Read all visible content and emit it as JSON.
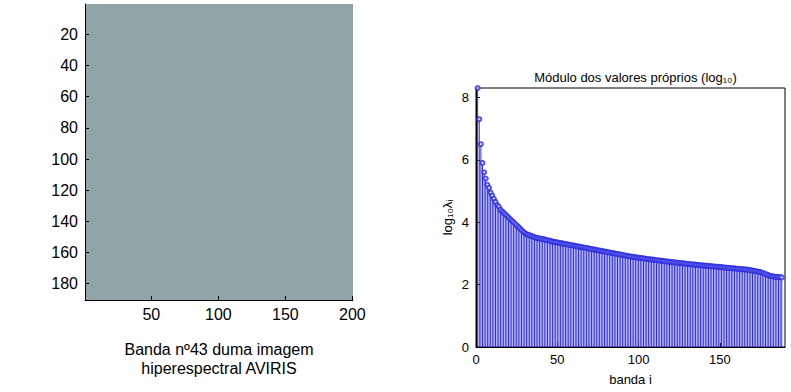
{
  "chart_data": [
    {
      "type": "image",
      "xlabel": "Banda nº43 duma imagem hiperespectral AVIRIS",
      "color": "#8fa5a6",
      "xlim": [
        0.5,
        200.5
      ],
      "xticks": [
        50,
        100,
        150,
        200
      ],
      "ylim": [
        0.5,
        190.5
      ],
      "yticks": [
        20,
        40,
        60,
        80,
        100,
        120,
        140,
        160,
        180
      ],
      "grid": false
    },
    {
      "type": "bar",
      "title": "Módulo dos valores próprios (log₁₀)",
      "xlabel": "banda i",
      "ylabel": "log₁₀λᵢ",
      "color": "#2b2be0",
      "marker": "circle",
      "grid": false,
      "xlim": [
        0,
        190
      ],
      "xticks": [
        0,
        50,
        100,
        150
      ],
      "ylim": [
        0,
        8.3
      ],
      "yticks": [
        0,
        2,
        4,
        6,
        8
      ],
      "x": [
        1,
        2,
        3,
        4,
        5,
        6,
        7,
        8,
        9,
        10,
        11,
        12,
        13,
        14,
        15,
        16,
        17,
        18,
        19,
        20,
        21,
        22,
        23,
        24,
        25,
        26,
        27,
        28,
        29,
        30,
        31,
        32,
        33,
        34,
        35,
        36,
        37,
        38,
        39,
        40,
        41,
        42,
        43,
        44,
        45,
        46,
        47,
        48,
        49,
        50,
        51,
        52,
        53,
        54,
        55,
        56,
        57,
        58,
        59,
        60,
        61,
        62,
        63,
        64,
        65,
        66,
        67,
        68,
        69,
        70,
        71,
        72,
        73,
        74,
        75,
        76,
        77,
        78,
        79,
        80,
        81,
        82,
        83,
        84,
        85,
        86,
        87,
        88,
        89,
        90,
        91,
        92,
        93,
        94,
        95,
        96,
        97,
        98,
        99,
        100,
        101,
        102,
        103,
        104,
        105,
        106,
        107,
        108,
        109,
        110,
        111,
        112,
        113,
        114,
        115,
        116,
        117,
        118,
        119,
        120,
        121,
        122,
        123,
        124,
        125,
        126,
        127,
        128,
        129,
        130,
        131,
        132,
        133,
        134,
        135,
        136,
        137,
        138,
        139,
        140,
        141,
        142,
        143,
        144,
        145,
        146,
        147,
        148,
        149,
        150,
        151,
        152,
        153,
        154,
        155,
        156,
        157,
        158,
        159,
        160,
        161,
        162,
        163,
        164,
        165,
        166,
        167,
        168,
        169,
        170,
        171,
        172,
        173,
        174,
        175,
        176,
        177,
        178,
        179,
        180,
        181,
        182,
        183,
        184,
        185,
        186,
        187,
        188
      ],
      "values": [
        8.3,
        7.3,
        6.5,
        5.9,
        5.6,
        5.4,
        5.2,
        5.1,
        4.95,
        4.85,
        4.75,
        4.65,
        4.55,
        4.5,
        4.4,
        4.35,
        4.3,
        4.25,
        4.2,
        4.15,
        4.1,
        4.05,
        4.0,
        3.95,
        3.9,
        3.85,
        3.8,
        3.75,
        3.7,
        3.65,
        3.62,
        3.6,
        3.58,
        3.56,
        3.54,
        3.52,
        3.5,
        3.49,
        3.48,
        3.47,
        3.46,
        3.45,
        3.43,
        3.42,
        3.41,
        3.4,
        3.38,
        3.37,
        3.36,
        3.35,
        3.34,
        3.33,
        3.32,
        3.31,
        3.3,
        3.29,
        3.28,
        3.27,
        3.26,
        3.25,
        3.24,
        3.23,
        3.22,
        3.21,
        3.2,
        3.19,
        3.18,
        3.17,
        3.16,
        3.15,
        3.14,
        3.13,
        3.12,
        3.11,
        3.1,
        3.09,
        3.08,
        3.07,
        3.06,
        3.05,
        3.04,
        3.03,
        3.02,
        3.01,
        3.0,
        2.99,
        2.98,
        2.97,
        2.96,
        2.95,
        2.94,
        2.93,
        2.92,
        2.91,
        2.9,
        2.89,
        2.88,
        2.88,
        2.87,
        2.86,
        2.85,
        2.85,
        2.84,
        2.83,
        2.82,
        2.82,
        2.81,
        2.8,
        2.8,
        2.79,
        2.78,
        2.78,
        2.77,
        2.76,
        2.76,
        2.75,
        2.74,
        2.74,
        2.73,
        2.72,
        2.72,
        2.71,
        2.71,
        2.7,
        2.69,
        2.69,
        2.68,
        2.68,
        2.67,
        2.66,
        2.66,
        2.65,
        2.65,
        2.64,
        2.64,
        2.63,
        2.63,
        2.62,
        2.62,
        2.61,
        2.61,
        2.6,
        2.6,
        2.59,
        2.59,
        2.58,
        2.58,
        2.57,
        2.57,
        2.56,
        2.56,
        2.55,
        2.55,
        2.54,
        2.54,
        2.53,
        2.53,
        2.52,
        2.52,
        2.51,
        2.51,
        2.5,
        2.5,
        2.49,
        2.49,
        2.48,
        2.48,
        2.47,
        2.46,
        2.45,
        2.44,
        2.43,
        2.42,
        2.41,
        2.4,
        2.38,
        2.36,
        2.34,
        2.32,
        2.3,
        2.28,
        2.27,
        2.26,
        2.25,
        2.25,
        2.24,
        2.24,
        2.23
      ]
    }
  ]
}
